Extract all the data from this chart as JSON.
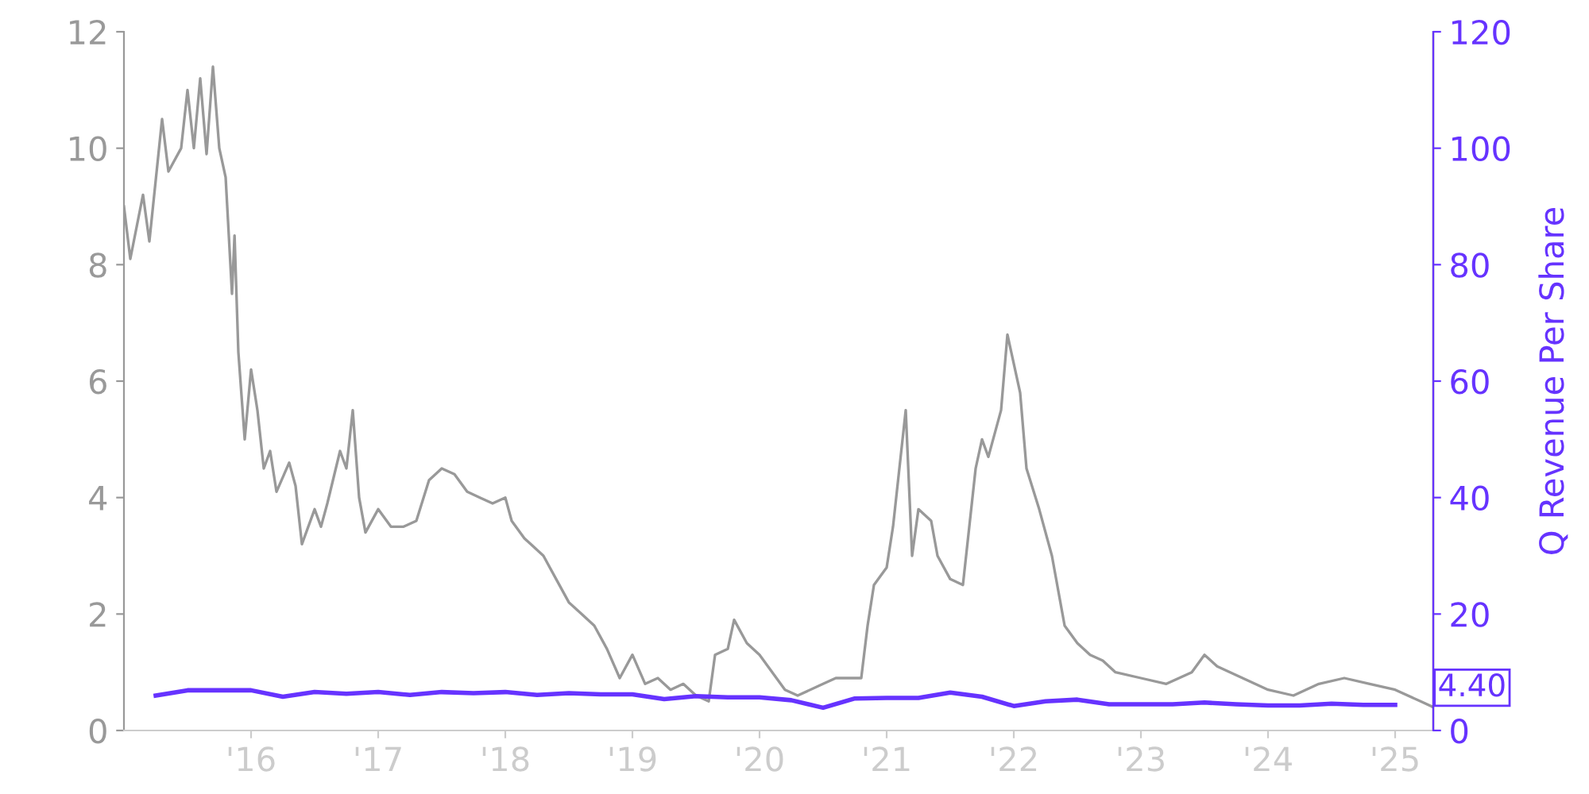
{
  "chart_data": {
    "type": "line",
    "y2label": "Q Revenue Per Share",
    "xlim": [
      2015.0,
      2025.3
    ],
    "xticks": [
      {
        "value": 2016,
        "label": "'16"
      },
      {
        "value": 2017,
        "label": "'17"
      },
      {
        "value": 2018,
        "label": "'18"
      },
      {
        "value": 2019,
        "label": "'19"
      },
      {
        "value": 2020,
        "label": "'20"
      },
      {
        "value": 2021,
        "label": "'21"
      },
      {
        "value": 2022,
        "label": "'22"
      },
      {
        "value": 2023,
        "label": "'23"
      },
      {
        "value": 2024,
        "label": "'24"
      },
      {
        "value": 2025,
        "label": "'25"
      }
    ],
    "ylim": [
      0,
      12
    ],
    "yticks": [
      0,
      2,
      4,
      6,
      8,
      10,
      12
    ],
    "y2lim": [
      0,
      120
    ],
    "y2ticks": [
      0,
      20,
      40,
      60,
      80,
      100,
      120
    ],
    "grid": false,
    "legend": false,
    "marker": "none",
    "line_style": "solid",
    "series": [
      {
        "color": "#999999",
        "x": [
          2015.0,
          2015.05,
          2015.15,
          2015.2,
          2015.3,
          2015.35,
          2015.45,
          2015.5,
          2015.55,
          2015.6,
          2015.65,
          2015.7,
          2015.75,
          2015.8,
          2015.85,
          2015.87,
          2015.9,
          2015.95,
          2016.0,
          2016.05,
          2016.1,
          2016.15,
          2016.2,
          2016.3,
          2016.35,
          2016.4,
          2016.5,
          2016.55,
          2016.6,
          2016.7,
          2016.75,
          2016.8,
          2016.85,
          2016.9,
          2017.0,
          2017.1,
          2017.2,
          2017.3,
          2017.4,
          2017.5,
          2017.6,
          2017.7,
          2017.8,
          2017.9,
          2018.0,
          2018.05,
          2018.15,
          2018.2,
          2018.3,
          2018.4,
          2018.5,
          2018.6,
          2018.7,
          2018.8,
          2018.9,
          2019.0,
          2019.1,
          2019.2,
          2019.3,
          2019.4,
          2019.5,
          2019.6,
          2019.65,
          2019.75,
          2019.8,
          2019.9,
          2020.0,
          2020.1,
          2020.2,
          2020.3,
          2020.5,
          2020.6,
          2020.8,
          2020.85,
          2020.9,
          2021.0,
          2021.05,
          2021.15,
          2021.2,
          2021.25,
          2021.35,
          2021.4,
          2021.5,
          2021.6,
          2021.7,
          2021.75,
          2021.8,
          2021.9,
          2021.95,
          2022.05,
          2022.1,
          2022.2,
          2022.3,
          2022.4,
          2022.5,
          2022.6,
          2022.7,
          2022.8,
          2023.0,
          2023.2,
          2023.4,
          2023.5,
          2023.6,
          2023.8,
          2024.0,
          2024.2,
          2024.4,
          2024.6,
          2024.8,
          2025.0,
          2025.2,
          2025.3
        ],
        "values": [
          9.0,
          8.1,
          9.2,
          8.4,
          10.5,
          9.6,
          10.0,
          11.0,
          10.0,
          11.2,
          9.9,
          11.4,
          10.0,
          9.5,
          7.5,
          8.5,
          6.5,
          5.0,
          6.2,
          5.5,
          4.5,
          4.8,
          4.1,
          4.6,
          4.2,
          3.2,
          3.8,
          3.5,
          3.9,
          4.8,
          4.5,
          5.5,
          4.0,
          3.4,
          3.8,
          3.5,
          3.5,
          3.6,
          4.3,
          4.5,
          4.4,
          4.1,
          4.0,
          3.9,
          4.0,
          3.6,
          3.3,
          3.2,
          3.0,
          2.6,
          2.2,
          2.0,
          1.8,
          1.4,
          0.9,
          1.3,
          0.8,
          0.9,
          0.7,
          0.8,
          0.6,
          0.5,
          1.3,
          1.4,
          1.9,
          1.5,
          1.3,
          1.0,
          0.7,
          0.6,
          0.8,
          0.9,
          0.9,
          1.8,
          2.5,
          2.8,
          3.5,
          5.5,
          3.0,
          3.8,
          3.6,
          3.0,
          2.6,
          2.5,
          4.5,
          5.0,
          4.7,
          5.5,
          6.8,
          5.8,
          4.5,
          3.8,
          3.0,
          1.8,
          1.5,
          1.3,
          1.2,
          1.0,
          0.9,
          0.8,
          1.0,
          1.3,
          1.1,
          0.9,
          0.7,
          0.6,
          0.8,
          0.9,
          0.8,
          0.7,
          0.5,
          0.4
        ]
      },
      {
        "color": "#6633ff",
        "axis": "y2",
        "x": [
          2015.25,
          2015.5,
          2016.0,
          2016.25,
          2016.5,
          2016.75,
          2017.0,
          2017.25,
          2017.5,
          2017.75,
          2018.0,
          2018.25,
          2018.5,
          2018.75,
          2019.0,
          2019.25,
          2019.5,
          2019.75,
          2020.0,
          2020.25,
          2020.5,
          2020.75,
          2021.0,
          2021.25,
          2021.5,
          2021.75,
          2022.0,
          2022.25,
          2022.5,
          2022.75,
          2023.0,
          2023.25,
          2023.5,
          2023.75,
          2024.0,
          2024.25,
          2024.5,
          2024.75,
          2025.0
        ],
        "values": [
          6.0,
          6.9,
          6.9,
          5.8,
          6.6,
          6.3,
          6.6,
          6.1,
          6.6,
          6.4,
          6.6,
          6.1,
          6.4,
          6.2,
          6.2,
          5.4,
          5.9,
          5.7,
          5.7,
          5.2,
          3.9,
          5.5,
          5.6,
          5.6,
          6.5,
          5.8,
          4.2,
          5.0,
          5.3,
          4.5,
          4.5,
          4.5,
          4.8,
          4.5,
          4.3,
          4.3,
          4.6,
          4.4,
          4.4
        ],
        "value_labels": [
          null,
          null,
          null,
          null,
          null,
          null,
          null,
          null,
          null,
          null,
          null,
          null,
          null,
          null,
          null,
          null,
          null,
          null,
          null,
          null,
          null,
          null,
          null,
          null,
          null,
          null,
          null,
          null,
          null,
          null,
          null,
          null,
          null,
          null,
          null,
          null,
          null,
          null,
          "4.40"
        ]
      }
    ]
  }
}
